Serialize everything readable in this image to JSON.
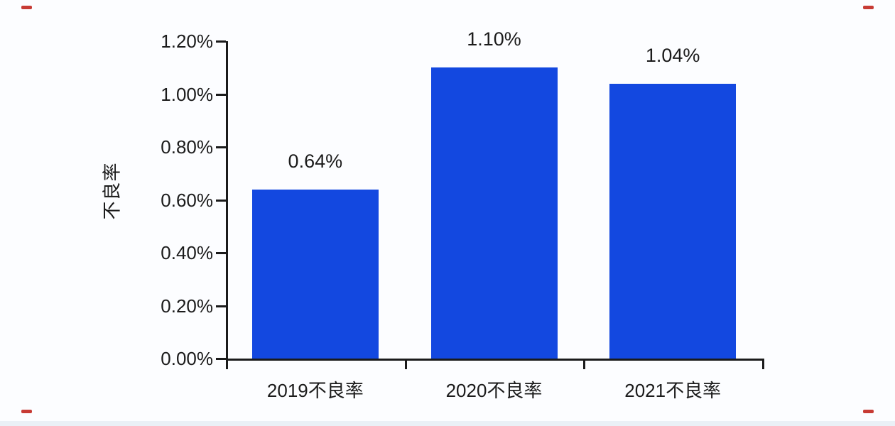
{
  "chart_data": {
    "type": "bar",
    "title": "",
    "ylabel": "不良率",
    "xlabel": "",
    "categories": [
      "2019不良率",
      "2020不良率",
      "2021不良率"
    ],
    "values": [
      0.64,
      1.1,
      1.04
    ],
    "data_labels": [
      "0.64%",
      "1.10%",
      "1.04%"
    ],
    "unit": "%",
    "ylim": [
      0,
      1.2
    ],
    "y_ticks": [
      {
        "value": 0.0,
        "label": "0.00%"
      },
      {
        "value": 0.2,
        "label": "0.20%"
      },
      {
        "value": 0.4,
        "label": "0.40%"
      },
      {
        "value": 0.6,
        "label": "0.60%"
      },
      {
        "value": 0.8,
        "label": "0.80%"
      },
      {
        "value": 1.0,
        "label": "1.00%"
      },
      {
        "value": 1.2,
        "label": "1.20%"
      }
    ],
    "grid": false,
    "legend": "none",
    "bar_color": "#1348e0",
    "axis_color": "#1b1b1b",
    "text_color": "#1b1b1b"
  },
  "decorations": {
    "corner_mark_color": "#c73b34",
    "bottom_strip_color": "#eaf0f6"
  }
}
